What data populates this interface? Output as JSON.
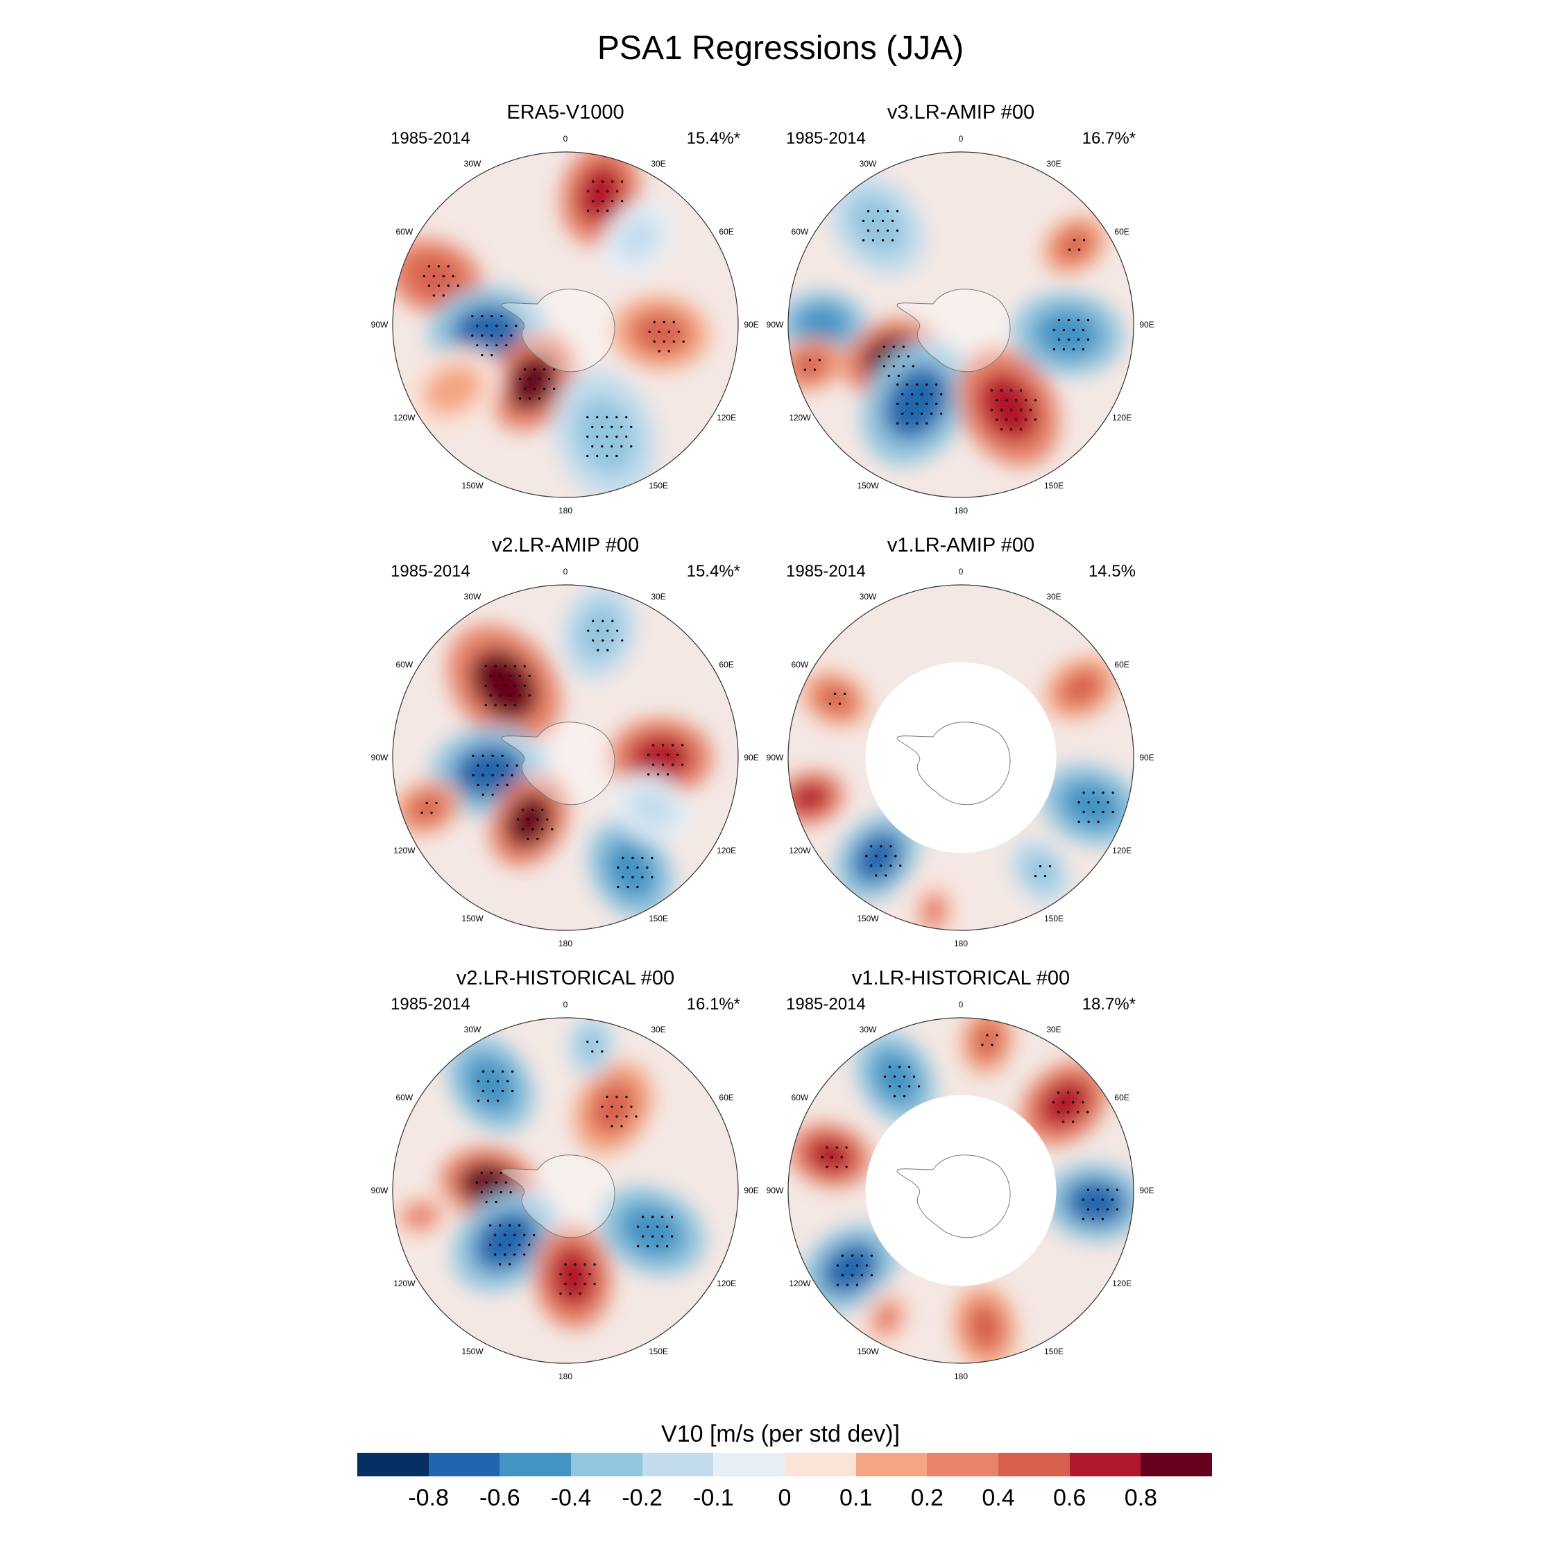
{
  "figure": {
    "title": "PSA1 Regressions (JJA)"
  },
  "tick_labels": [
    "0",
    "30E",
    "60E",
    "90E",
    "120E",
    "150E",
    "180",
    "150W",
    "120W",
    "90W",
    "60W",
    "30W"
  ],
  "panels": [
    {
      "title": "ERA5-V1000",
      "period": "1985-2014",
      "percent": "15.4%*",
      "masked": false,
      "blobs": [
        {
          "lon": 15,
          "r": 0.78,
          "sz": 0.15,
          "v": 0.6,
          "sig": true
        },
        {
          "lon": -70,
          "r": 0.8,
          "sz": 0.14,
          "v": 0.5,
          "sig": true
        },
        {
          "lon": -95,
          "r": 0.45,
          "sz": 0.17,
          "v": -0.8,
          "sig": true
        },
        {
          "lon": -150,
          "r": 0.38,
          "sz": 0.15,
          "v": 0.8,
          "sig": true
        },
        {
          "lon": 160,
          "r": 0.68,
          "sz": 0.19,
          "v": -0.4,
          "sig": true
        },
        {
          "lon": 95,
          "r": 0.55,
          "sz": 0.14,
          "v": 0.4,
          "sig": true
        },
        {
          "lon": 40,
          "r": 0.65,
          "sz": 0.12,
          "v": -0.2,
          "sig": false
        },
        {
          "lon": -120,
          "r": 0.75,
          "sz": 0.15,
          "v": 0.1,
          "sig": false
        }
      ]
    },
    {
      "title": "v3.LR-AMIP  #00",
      "period": "1985-2014",
      "percent": "16.7%*",
      "masked": false,
      "blobs": [
        {
          "lon": -40,
          "r": 0.75,
          "sz": 0.16,
          "v": -0.4,
          "sig": true
        },
        {
          "lon": -90,
          "r": 0.8,
          "sz": 0.13,
          "v": -0.6,
          "sig": false
        },
        {
          "lon": -115,
          "r": 0.45,
          "sz": 0.14,
          "v": 0.8,
          "sig": true
        },
        {
          "lon": -150,
          "r": 0.52,
          "sz": 0.19,
          "v": -0.8,
          "sig": true
        },
        {
          "lon": 150,
          "r": 0.55,
          "sz": 0.18,
          "v": 0.6,
          "sig": true
        },
        {
          "lon": 95,
          "r": 0.62,
          "sz": 0.16,
          "v": -0.6,
          "sig": true
        },
        {
          "lon": 55,
          "r": 0.8,
          "sz": 0.1,
          "v": 0.4,
          "sig": true
        },
        {
          "lon": -105,
          "r": 0.9,
          "sz": 0.1,
          "v": 0.4,
          "sig": true
        }
      ]
    },
    {
      "title": "v2.LR-AMIP  #00",
      "period": "1985-2014",
      "percent": "15.4%*",
      "masked": false,
      "blobs": [
        {
          "lon": -40,
          "r": 0.55,
          "sz": 0.19,
          "v": 0.8,
          "sig": true
        },
        {
          "lon": 15,
          "r": 0.75,
          "sz": 0.14,
          "v": -0.4,
          "sig": true
        },
        {
          "lon": -100,
          "r": 0.45,
          "sz": 0.17,
          "v": -0.8,
          "sig": true
        },
        {
          "lon": -150,
          "r": 0.42,
          "sz": 0.14,
          "v": 0.8,
          "sig": true
        },
        {
          "lon": 90,
          "r": 0.55,
          "sz": 0.15,
          "v": 0.6,
          "sig": true
        },
        {
          "lon": 150,
          "r": 0.75,
          "sz": 0.15,
          "v": -0.6,
          "sig": true
        },
        {
          "lon": -110,
          "r": 0.85,
          "sz": 0.1,
          "v": 0.4,
          "sig": true
        },
        {
          "lon": 120,
          "r": 0.58,
          "sz": 0.12,
          "v": -0.2,
          "sig": false
        }
      ]
    },
    {
      "title": "v1.LR-AMIP  #00",
      "period": "1985-2014",
      "percent": "14.5%",
      "masked": true,
      "blobs": [
        {
          "lon": -65,
          "r": 0.8,
          "sz": 0.1,
          "v": 0.4,
          "sig": true
        },
        {
          "lon": -105,
          "r": 0.9,
          "sz": 0.1,
          "v": 0.6,
          "sig": false
        },
        {
          "lon": -140,
          "r": 0.75,
          "sz": 0.14,
          "v": -0.8,
          "sig": true
        },
        {
          "lon": 110,
          "r": 0.8,
          "sz": 0.15,
          "v": -0.6,
          "sig": true
        },
        {
          "lon": 60,
          "r": 0.8,
          "sz": 0.11,
          "v": 0.4,
          "sig": false
        },
        {
          "lon": -170,
          "r": 0.9,
          "sz": 0.1,
          "v": 0.2,
          "sig": false
        },
        {
          "lon": 145,
          "r": 0.8,
          "sz": 0.1,
          "v": -0.4,
          "sig": true
        }
      ]
    },
    {
      "title": "v2.LR-HISTORICAL  #00",
      "period": "1985-2014",
      "percent": "16.1%*",
      "masked": false,
      "blobs": [
        {
          "lon": -35,
          "r": 0.75,
          "sz": 0.15,
          "v": -0.6,
          "sig": true
        },
        {
          "lon": -85,
          "r": 0.45,
          "sz": 0.14,
          "v": 0.8,
          "sig": true
        },
        {
          "lon": -130,
          "r": 0.45,
          "sz": 0.17,
          "v": -0.8,
          "sig": true
        },
        {
          "lon": 175,
          "r": 0.5,
          "sz": 0.15,
          "v": 0.6,
          "sig": true
        },
        {
          "lon": 115,
          "r": 0.55,
          "sz": 0.16,
          "v": -0.6,
          "sig": true
        },
        {
          "lon": 30,
          "r": 0.55,
          "sz": 0.14,
          "v": 0.4,
          "sig": true
        },
        {
          "lon": 10,
          "r": 0.85,
          "sz": 0.09,
          "v": -0.4,
          "sig": true
        },
        {
          "lon": -100,
          "r": 0.85,
          "sz": 0.1,
          "v": 0.2,
          "sig": false
        }
      ]
    },
    {
      "title": "v1.LR-HISTORICAL  #00",
      "period": "1985-2014",
      "percent": "18.7%*",
      "masked": true,
      "blobs": [
        {
          "lon": -30,
          "r": 0.75,
          "sz": 0.14,
          "v": -0.6,
          "sig": true
        },
        {
          "lon": -75,
          "r": 0.78,
          "sz": 0.12,
          "v": 0.6,
          "sig": true
        },
        {
          "lon": -125,
          "r": 0.78,
          "sz": 0.15,
          "v": -0.8,
          "sig": true
        },
        {
          "lon": 95,
          "r": 0.78,
          "sz": 0.15,
          "v": -0.8,
          "sig": true
        },
        {
          "lon": 50,
          "r": 0.78,
          "sz": 0.14,
          "v": 0.6,
          "sig": true
        },
        {
          "lon": 170,
          "r": 0.8,
          "sz": 0.12,
          "v": 0.4,
          "sig": false
        },
        {
          "lon": 10,
          "r": 0.88,
          "sz": 0.1,
          "v": 0.4,
          "sig": true
        },
        {
          "lon": -150,
          "r": 0.85,
          "sz": 0.1,
          "v": 0.2,
          "sig": false
        }
      ]
    }
  ],
  "colorbar": {
    "title": "V10 [m/s (per std dev)]",
    "labels": [
      "-0.8",
      "-0.6",
      "-0.4",
      "-0.2",
      "-0.1",
      "0",
      "0.1",
      "0.2",
      "0.4",
      "0.6",
      "0.8"
    ],
    "colors": [
      "#053061",
      "#2166ac",
      "#4393c3",
      "#92c5de",
      "#c2dced",
      "#e6eff6",
      "#fbe3d8",
      "#f4a582",
      "#e8846a",
      "#d6604d",
      "#b2182b",
      "#67001f"
    ]
  }
}
